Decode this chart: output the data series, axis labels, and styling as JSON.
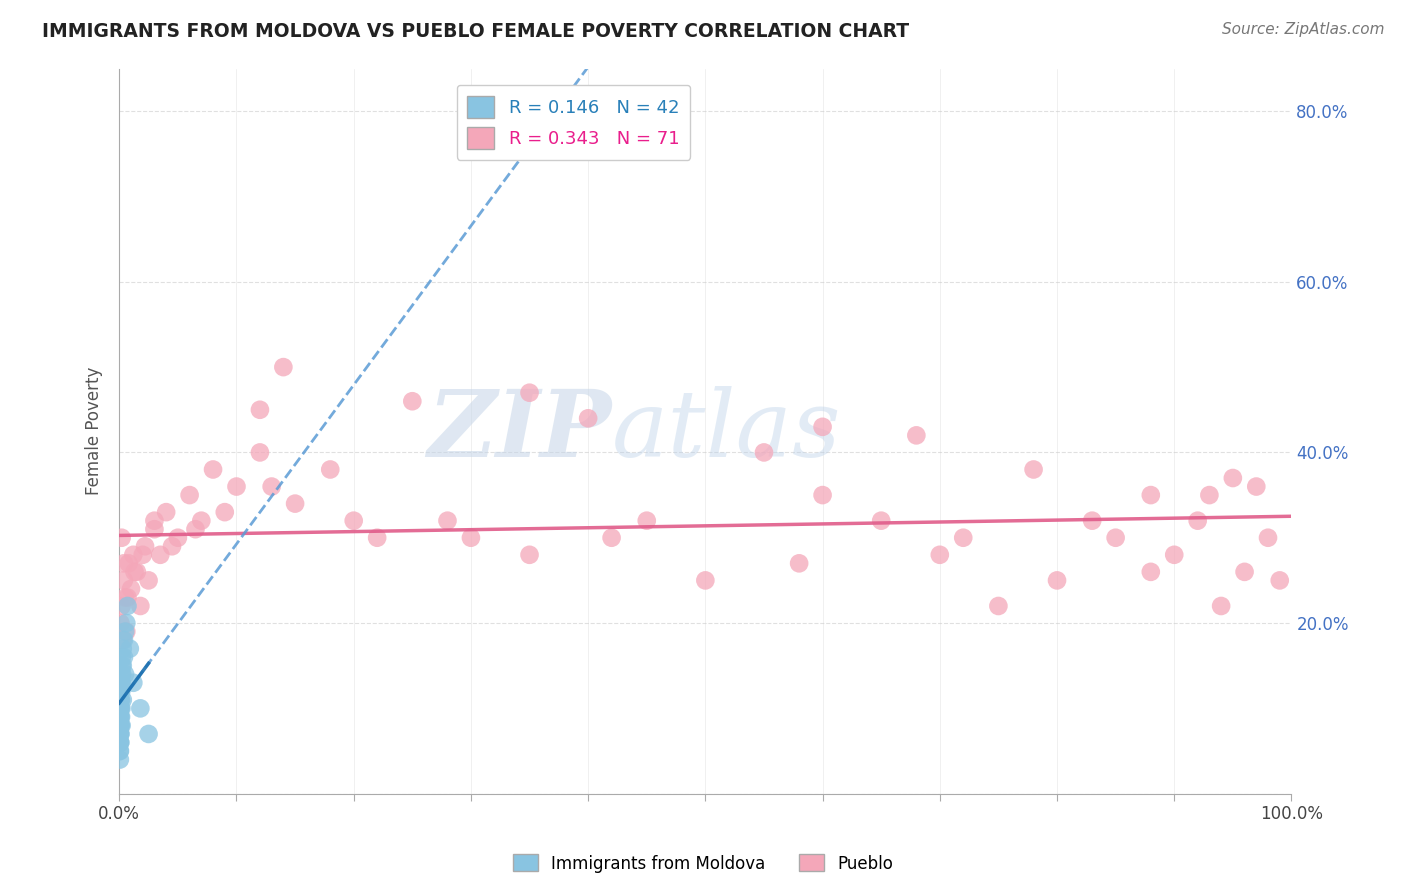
{
  "title": "IMMIGRANTS FROM MOLDOVA VS PUEBLO FEMALE POVERTY CORRELATION CHART",
  "source": "Source: ZipAtlas.com",
  "ylabel": "Female Poverty",
  "xlim": [
    0.0,
    1.0
  ],
  "ylim": [
    0.0,
    0.85
  ],
  "legend_r1": "R = 0.146",
  "legend_n1": "N = 42",
  "legend_r2": "R = 0.343",
  "legend_n2": "N = 71",
  "color_blue": "#89c4e1",
  "color_pink": "#f4a7b9",
  "color_blue_line": "#5b9bd5",
  "color_pink_line": "#e05c8a",
  "watermark_zip": "ZIP",
  "watermark_atlas": "atlas",
  "blue_x": [
    0.0003,
    0.0004,
    0.0005,
    0.0005,
    0.0006,
    0.0006,
    0.0007,
    0.0007,
    0.0008,
    0.0008,
    0.0009,
    0.0009,
    0.001,
    0.001,
    0.001,
    0.0012,
    0.0012,
    0.0013,
    0.0014,
    0.0015,
    0.0015,
    0.0016,
    0.0017,
    0.0018,
    0.002,
    0.002,
    0.002,
    0.0022,
    0.0025,
    0.003,
    0.003,
    0.003,
    0.004,
    0.004,
    0.005,
    0.005,
    0.006,
    0.007,
    0.009,
    0.012,
    0.018,
    0.025
  ],
  "blue_y": [
    0.05,
    0.06,
    0.07,
    0.04,
    0.08,
    0.05,
    0.06,
    0.09,
    0.07,
    0.1,
    0.08,
    0.06,
    0.11,
    0.09,
    0.07,
    0.12,
    0.1,
    0.08,
    0.13,
    0.11,
    0.09,
    0.14,
    0.12,
    0.1,
    0.15,
    0.13,
    0.08,
    0.16,
    0.14,
    0.17,
    0.15,
    0.11,
    0.18,
    0.16,
    0.19,
    0.14,
    0.2,
    0.22,
    0.17,
    0.13,
    0.1,
    0.07
  ],
  "pink_x": [
    0.001,
    0.002,
    0.003,
    0.004,
    0.005,
    0.006,
    0.008,
    0.01,
    0.012,
    0.015,
    0.018,
    0.022,
    0.025,
    0.03,
    0.035,
    0.04,
    0.05,
    0.06,
    0.07,
    0.08,
    0.1,
    0.12,
    0.15,
    0.18,
    0.22,
    0.28,
    0.35,
    0.42,
    0.5,
    0.58,
    0.65,
    0.7,
    0.75,
    0.8,
    0.85,
    0.88,
    0.9,
    0.92,
    0.94,
    0.96,
    0.98,
    0.99,
    0.002,
    0.004,
    0.007,
    0.013,
    0.02,
    0.03,
    0.045,
    0.065,
    0.09,
    0.13,
    0.2,
    0.3,
    0.45,
    0.6,
    0.72,
    0.83,
    0.93,
    0.97,
    0.12,
    0.25,
    0.4,
    0.55,
    0.68,
    0.78,
    0.88,
    0.95,
    0.14,
    0.35,
    0.6
  ],
  "pink_y": [
    0.2,
    0.22,
    0.18,
    0.25,
    0.23,
    0.19,
    0.27,
    0.24,
    0.28,
    0.26,
    0.22,
    0.29,
    0.25,
    0.31,
    0.28,
    0.33,
    0.3,
    0.35,
    0.32,
    0.38,
    0.36,
    0.4,
    0.34,
    0.38,
    0.3,
    0.32,
    0.28,
    0.3,
    0.25,
    0.27,
    0.32,
    0.28,
    0.22,
    0.25,
    0.3,
    0.26,
    0.28,
    0.32,
    0.22,
    0.26,
    0.3,
    0.25,
    0.3,
    0.27,
    0.23,
    0.26,
    0.28,
    0.32,
    0.29,
    0.31,
    0.33,
    0.36,
    0.32,
    0.3,
    0.32,
    0.35,
    0.3,
    0.32,
    0.35,
    0.36,
    0.45,
    0.46,
    0.44,
    0.4,
    0.42,
    0.38,
    0.35,
    0.37,
    0.5,
    0.47,
    0.43
  ]
}
